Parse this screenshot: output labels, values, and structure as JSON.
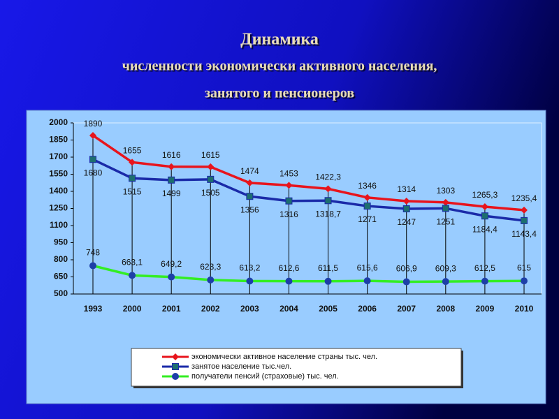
{
  "chart_data": {
    "type": "line",
    "title": [
      "Динамика",
      "численности экономически активного населения,",
      "занятого и пенсионеров"
    ],
    "categories": [
      "1993",
      "2000",
      "2001",
      "2002",
      "2003",
      "2004",
      "2005",
      "2006",
      "2007",
      "2008",
      "2009",
      "2010"
    ],
    "series": [
      {
        "name": "экономически активное население страны тыс. чел.",
        "color": "#e8141c",
        "marker": "diamond",
        "values": [
          1890,
          1655,
          1616,
          1615,
          1474,
          1453,
          1422.3,
          1346,
          1314,
          1303,
          1265.3,
          1235.4
        ],
        "value_labels": [
          "1890",
          "1655",
          "1616",
          "1615",
          "1474",
          "1453",
          "1422,3",
          "1346",
          "1314",
          "1303",
          "1265,3",
          "1235,4"
        ]
      },
      {
        "name": "занятое население тыс.чел.",
        "color": "#1a2aa8",
        "marker": "square",
        "values": [
          1680,
          1515,
          1499,
          1505,
          1356,
          1316,
          1318.7,
          1271,
          1247,
          1251,
          1184.4,
          1143.4
        ],
        "value_labels": [
          "1680",
          "1515",
          "1499",
          "1505",
          "1356",
          "1316",
          "1318,7",
          "1271",
          "1247",
          "1251",
          "1184,4",
          "1143,4"
        ]
      },
      {
        "name": "получатели пенсий (страховые) тыс. чел.",
        "color": "#33ee22",
        "marker": "circle",
        "values": [
          748,
          663.1,
          649.2,
          623.3,
          613.2,
          612.6,
          611.5,
          615.6,
          606.9,
          609.3,
          612.5,
          615
        ],
        "value_labels": [
          "748",
          "663,1",
          "649,2",
          "623,3",
          "613,2",
          "612,6",
          "611,5",
          "615,6",
          "606,9",
          "609,3",
          "612,5",
          "615"
        ]
      }
    ],
    "ylim": [
      500,
      2000
    ],
    "yticks": [
      500,
      650,
      800,
      950,
      1100,
      1250,
      1400,
      1550,
      1700,
      1850,
      2000
    ]
  }
}
